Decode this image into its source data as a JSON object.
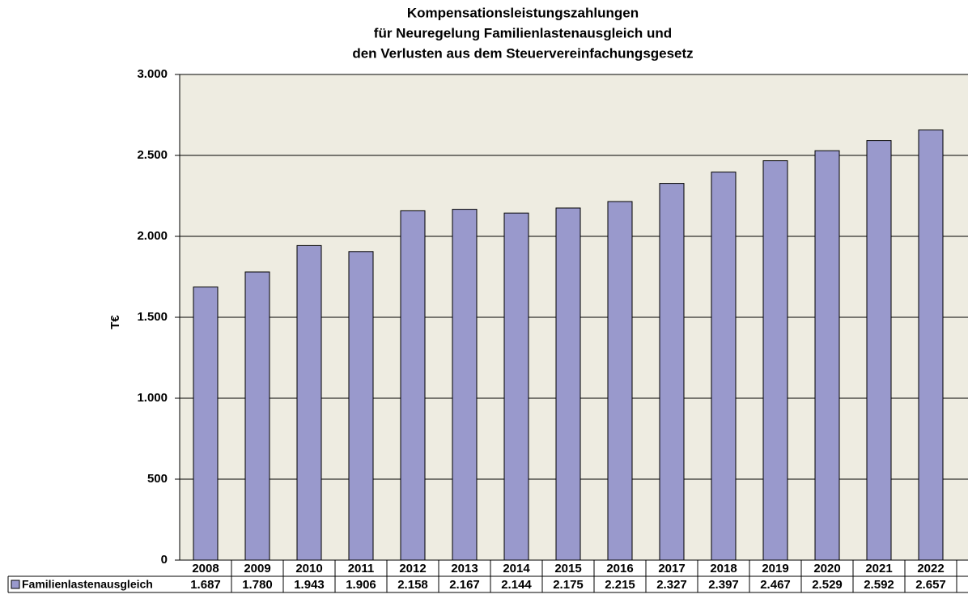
{
  "chart_data": {
    "type": "bar",
    "title": [
      "Kompensationsleistungszahlungen",
      "für  Neuregelung Familienlastenausgleich und",
      "den Verlusten aus dem Steuervereinfachungsgesetz"
    ],
    "y_label": "T€",
    "categories": [
      "2008",
      "2009",
      "2010",
      "2011",
      "2012",
      "2013",
      "2014",
      "2015",
      "2016",
      "2017",
      "2018",
      "2019",
      "2020",
      "2021",
      "2022"
    ],
    "series": [
      {
        "name": "Familienlastenausgleich",
        "color": "#9999cc",
        "values": [
          1687,
          1780,
          1943,
          1906,
          2158,
          2167,
          2144,
          2175,
          2215,
          2327,
          2397,
          2467,
          2529,
          2592,
          2657
        ],
        "value_labels": [
          "1.687",
          "1.780",
          "1.943",
          "1.906",
          "2.158",
          "2.167",
          "2.144",
          "2.175",
          "2.215",
          "2.327",
          "2.397",
          "2.467",
          "2.529",
          "2.592",
          "2.657"
        ]
      }
    ],
    "ylim": [
      0,
      3000
    ],
    "yticks": [
      0,
      {
        "value": 500,
        "label": "500"
      },
      {
        "value": 1000,
        "label": "1.000"
      },
      {
        "value": 1500,
        "label": "1.500"
      },
      {
        "value": 2000,
        "label": "2.000"
      },
      {
        "value": 2500,
        "label": "2.500"
      },
      {
        "value": 3000,
        "label": "3.000"
      }
    ],
    "grid": true
  }
}
